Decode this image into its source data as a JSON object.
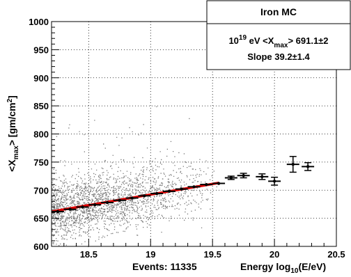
{
  "chart_data": {
    "type": "scatter",
    "stats_box": {
      "title": "Iron MC",
      "line1_exp": "19",
      "line1_pre": "10",
      "line1_mid": " eV <X",
      "line1_sub": "max",
      "line1_post": "> 691.1±2",
      "line2": "Slope 39.2±1.4"
    },
    "ylabel": {
      "pre": "<X",
      "sub": "max",
      "mid": "> [gm/cm",
      "sup": "2",
      "post": "]"
    },
    "xlabel_events": "Events: 11335",
    "xlabel": {
      "pre": "Energy  log",
      "sub": "10",
      "post": "(E/eV)"
    },
    "xlim": [
      18.2,
      20.5
    ],
    "ylim": [
      600,
      1000
    ],
    "x_ticks": [
      {
        "value": 18.5,
        "label": "18.5"
      },
      {
        "value": 19,
        "label": "19"
      },
      {
        "value": 19.5,
        "label": "19.5"
      },
      {
        "value": 20,
        "label": "20"
      },
      {
        "value": 20.5,
        "label": "20.5"
      }
    ],
    "y_ticks": [
      {
        "value": 600,
        "label": "600"
      },
      {
        "value": 650,
        "label": "650"
      },
      {
        "value": 700,
        "label": "700"
      },
      {
        "value": 750,
        "label": "750"
      },
      {
        "value": 800,
        "label": "800"
      },
      {
        "value": 850,
        "label": "850"
      },
      {
        "value": 900,
        "label": "900"
      },
      {
        "value": 950,
        "label": "950"
      },
      {
        "value": 1000,
        "label": "1000"
      }
    ],
    "grid": true,
    "events_count": 11335,
    "event_cloud": {
      "x_range": [
        18.2,
        19.55
      ],
      "trend_at_x0": 662,
      "trend_slope_per_decade": 39.2,
      "spread_sigma": 26,
      "upper_tail_max": 860
    },
    "fit_line": {
      "color": "#e00000",
      "x": [
        18.2,
        19.55
      ],
      "y": [
        662,
        713
      ]
    },
    "profile_points": {
      "color": "#000000",
      "points": [
        {
          "x": 18.25,
          "y": 662,
          "yerr": 1.5
        },
        {
          "x": 18.35,
          "y": 666,
          "yerr": 1.2
        },
        {
          "x": 18.45,
          "y": 670,
          "yerr": 1.2
        },
        {
          "x": 18.55,
          "y": 674,
          "yerr": 1.2
        },
        {
          "x": 18.65,
          "y": 678,
          "yerr": 1.2
        },
        {
          "x": 18.75,
          "y": 682,
          "yerr": 1.2
        },
        {
          "x": 18.85,
          "y": 686,
          "yerr": 1.3
        },
        {
          "x": 18.95,
          "y": 690,
          "yerr": 1.4
        },
        {
          "x": 19.05,
          "y": 694,
          "yerr": 1.5
        },
        {
          "x": 19.15,
          "y": 698,
          "yerr": 1.6
        },
        {
          "x": 19.25,
          "y": 702,
          "yerr": 1.8
        },
        {
          "x": 19.35,
          "y": 706,
          "yerr": 2
        },
        {
          "x": 19.45,
          "y": 710,
          "yerr": 2.2
        },
        {
          "x": 19.55,
          "y": 712,
          "yerr": 2.5
        },
        {
          "x": 19.65,
          "y": 722,
          "yerr": 3
        },
        {
          "x": 19.75,
          "y": 726,
          "yerr": 4
        },
        {
          "x": 19.9,
          "y": 724,
          "yerr": 5
        },
        {
          "x": 20.0,
          "y": 716,
          "yerr": 7
        },
        {
          "x": 20.15,
          "y": 746,
          "yerr": 14
        },
        {
          "x": 20.27,
          "y": 742,
          "yerr": 7
        }
      ]
    }
  }
}
